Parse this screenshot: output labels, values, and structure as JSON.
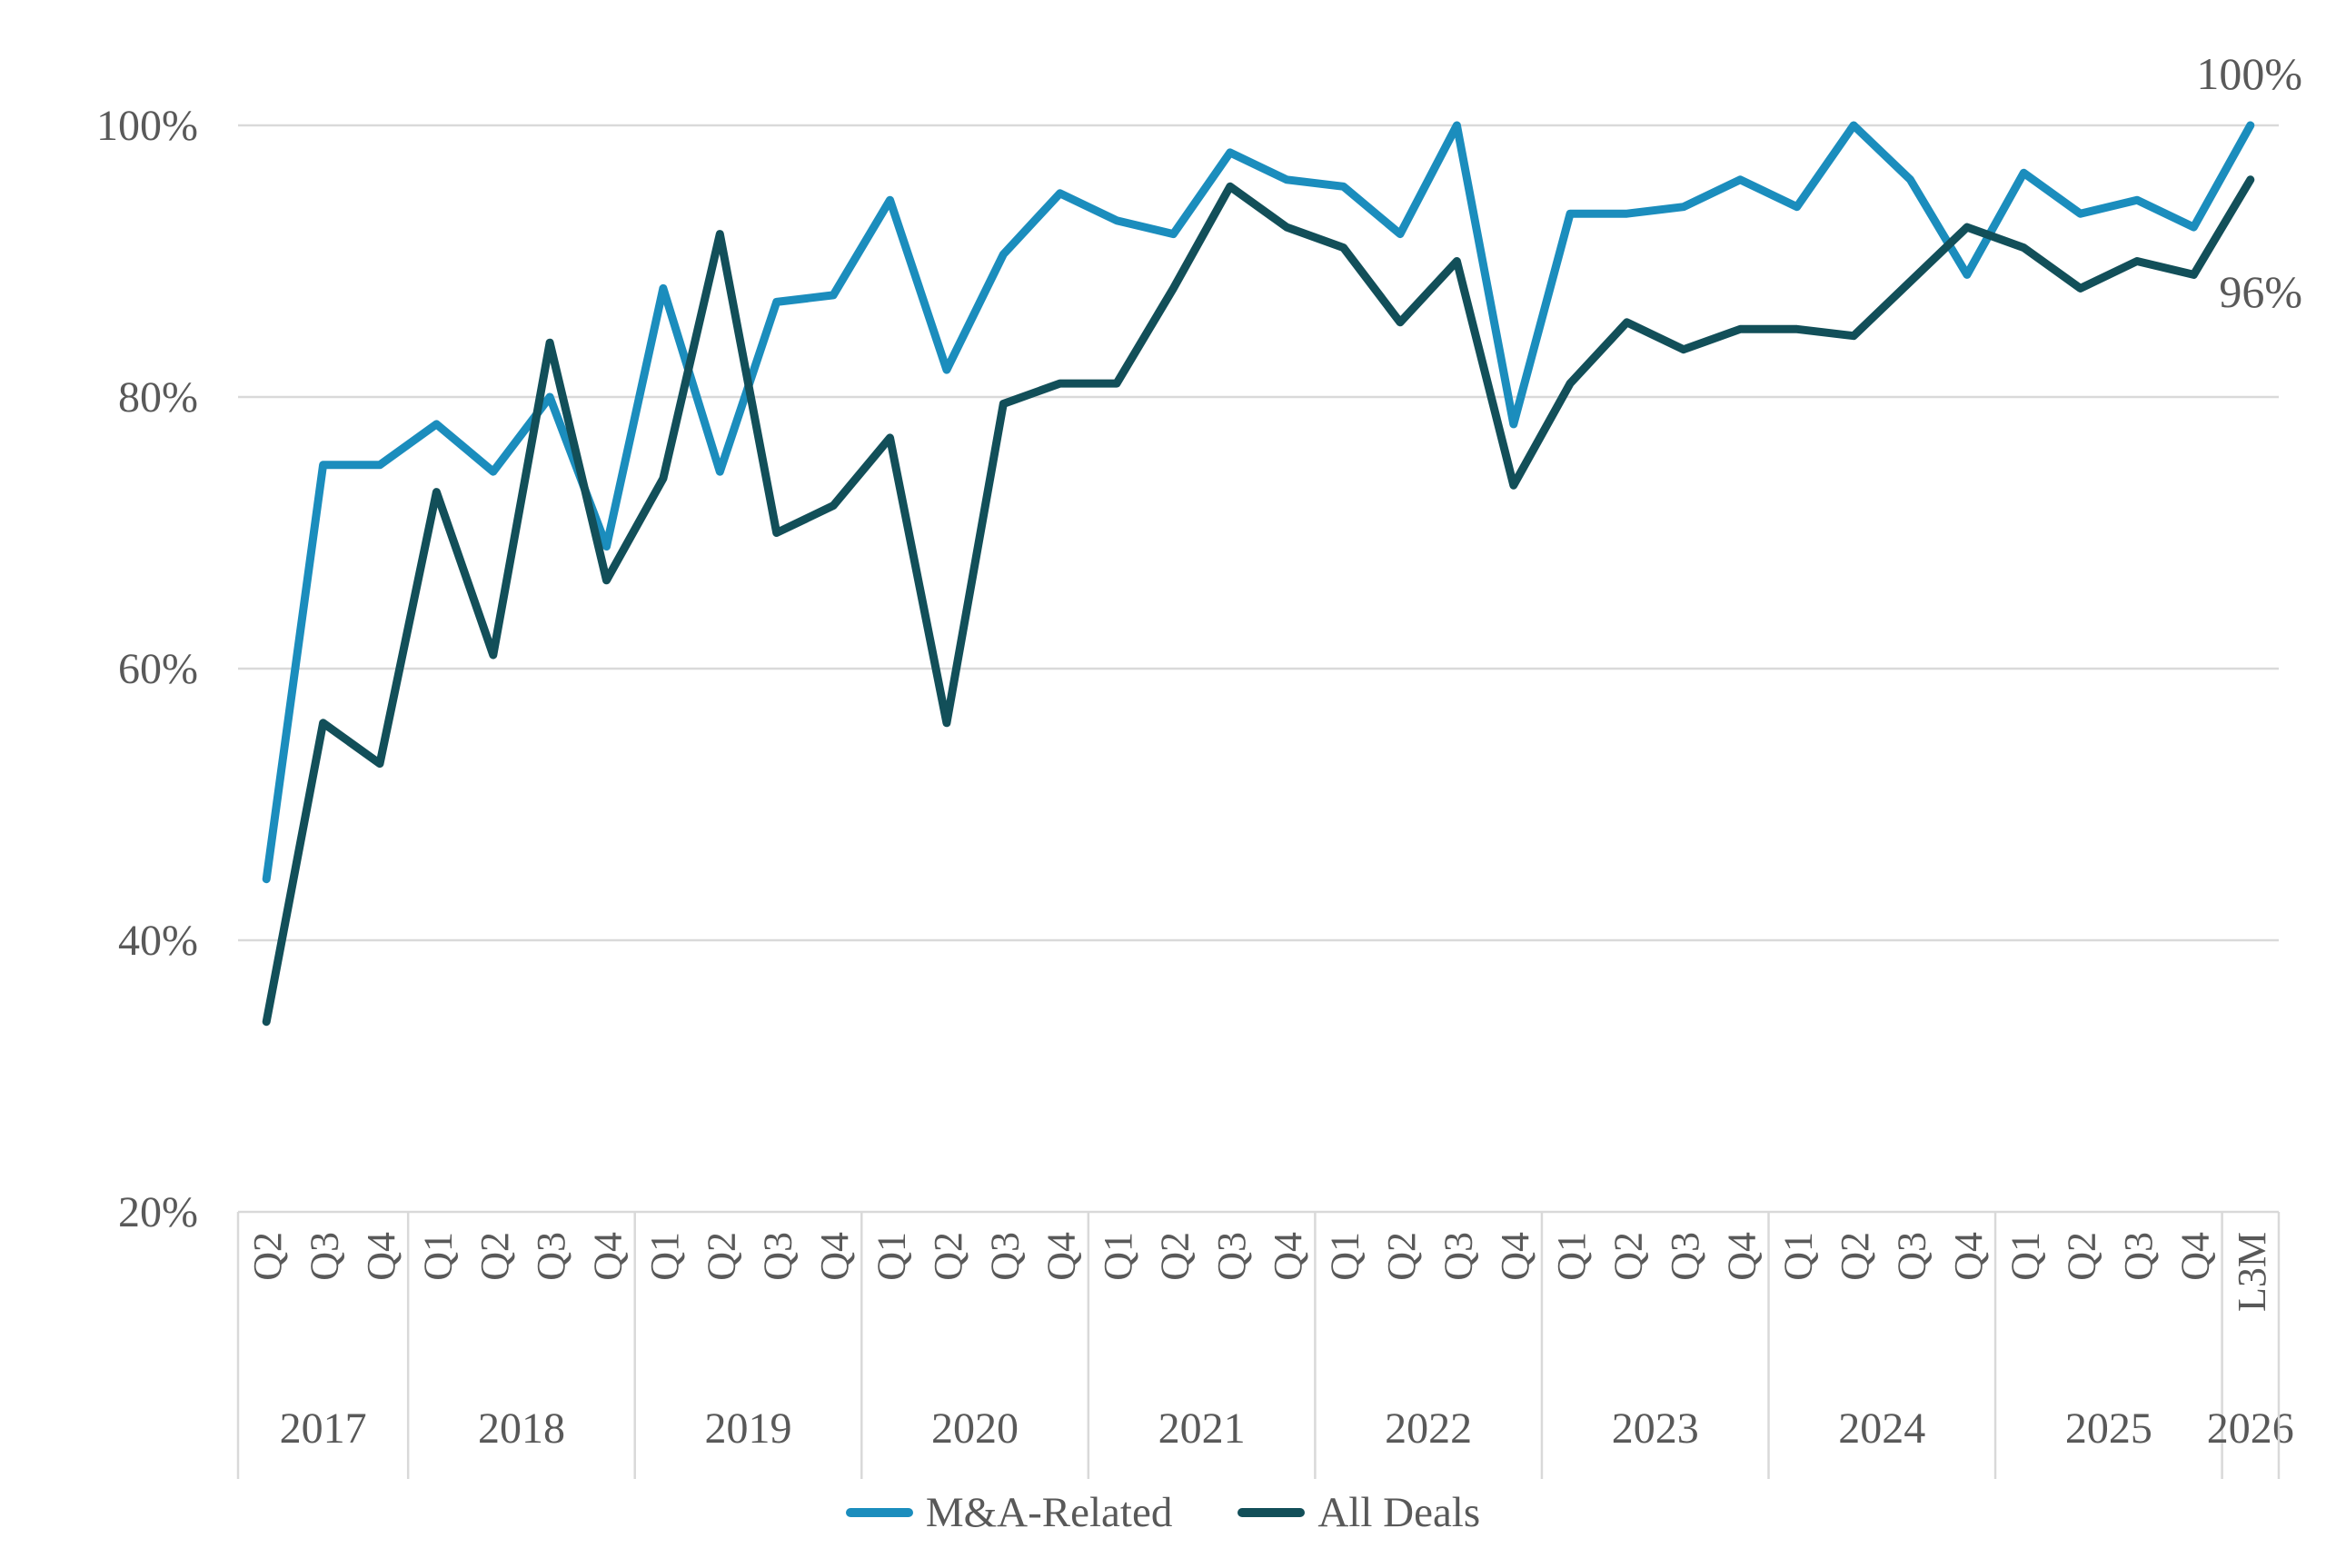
{
  "page": {
    "background": "#ffffff",
    "text_color": "#595959",
    "gridline_color": "#d9d9d9"
  },
  "chart_data": {
    "type": "line",
    "title": "",
    "xlabel": "",
    "ylabel": "",
    "ylim": [
      20,
      100
    ],
    "grid": "horizontal",
    "legend_position": "bottom",
    "yticks": [
      {
        "value": 100,
        "label": "100%"
      },
      {
        "value": 80,
        "label": "80%"
      },
      {
        "value": 60,
        "label": "60%"
      },
      {
        "value": 40,
        "label": "40%"
      },
      {
        "value": 20,
        "label": "20%"
      }
    ],
    "x_groups": [
      {
        "year": "2017",
        "quarters": [
          "Q2",
          "Q3",
          "Q4"
        ]
      },
      {
        "year": "2018",
        "quarters": [
          "Q1",
          "Q2",
          "Q3",
          "Q4"
        ]
      },
      {
        "year": "2019",
        "quarters": [
          "Q1",
          "Q2",
          "Q3",
          "Q4"
        ]
      },
      {
        "year": "2020",
        "quarters": [
          "Q1",
          "Q2",
          "Q3",
          "Q4"
        ]
      },
      {
        "year": "2021",
        "quarters": [
          "Q1",
          "Q2",
          "Q3",
          "Q4"
        ]
      },
      {
        "year": "2022",
        "quarters": [
          "Q1",
          "Q2",
          "Q3",
          "Q4"
        ]
      },
      {
        "year": "2023",
        "quarters": [
          "Q1",
          "Q2",
          "Q3",
          "Q4"
        ]
      },
      {
        "year": "2024",
        "quarters": [
          "Q1",
          "Q2",
          "Q3",
          "Q4"
        ]
      },
      {
        "year": "2025",
        "quarters": [
          "Q1",
          "Q2",
          "Q3",
          "Q4"
        ]
      },
      {
        "year": "2026",
        "quarters": [
          "L3M"
        ]
      }
    ],
    "series": [
      {
        "name": "M&A-Related",
        "color": "#1b8dbd",
        "values": [
          44.5,
          75,
          75,
          78,
          74.5,
          80,
          69,
          88,
          74.5,
          87,
          87.5,
          94.5,
          82,
          90.5,
          95,
          93,
          92,
          98,
          96,
          95.5,
          92,
          100,
          78,
          93.5,
          93.5,
          94,
          96,
          94,
          100,
          96,
          89,
          96.5,
          93.5,
          94.5,
          92.5,
          100
        ]
      },
      {
        "name": "All Deals",
        "color": "#124f59",
        "values": [
          34,
          56,
          53,
          73,
          61,
          84,
          66.5,
          74,
          92,
          70,
          72,
          77,
          56,
          79.5,
          81,
          81,
          88,
          95.5,
          92.5,
          91,
          85.5,
          90,
          73.5,
          81,
          85.5,
          83.5,
          85,
          85,
          84.5,
          88.5,
          92.5,
          91,
          88,
          90,
          89,
          96
        ]
      }
    ],
    "end_labels": [
      {
        "text": "100%",
        "series_index": 0
      },
      {
        "text": "96%",
        "series_index": 1
      }
    ]
  }
}
